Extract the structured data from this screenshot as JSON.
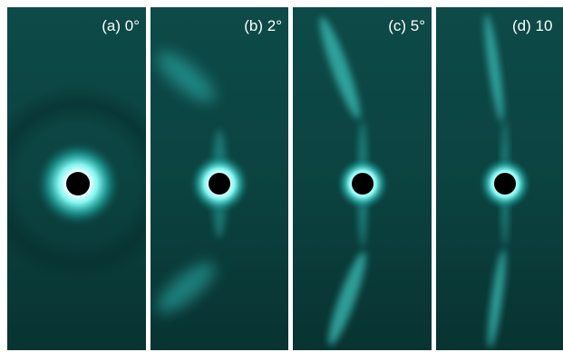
{
  "panels": [
    {
      "label": "(a) 0°"
    },
    {
      "label": "(b) 2°"
    },
    {
      "label": "(c) 5°"
    },
    {
      "label": "(d) 10"
    }
  ]
}
